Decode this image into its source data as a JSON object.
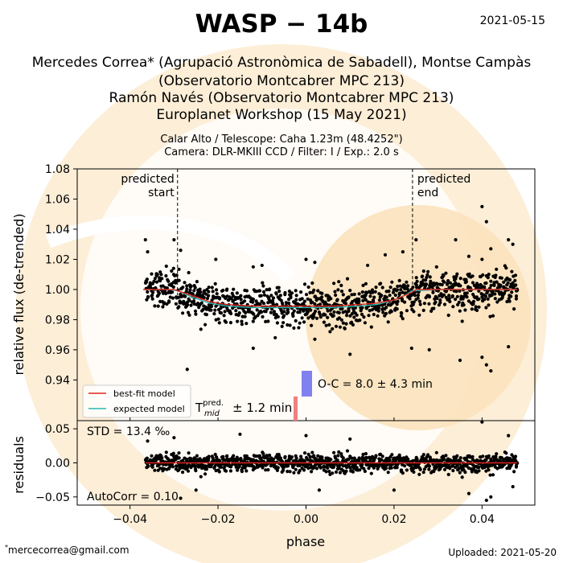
{
  "header": {
    "title": "WASP − 14b",
    "date": "2021-05-15",
    "authors_line1": "Mercedes Correa* (Agrupació Astronòmica de Sabadell), Montse Campàs",
    "authors_line2": "(Observatorio Montcabrer MPC 213)",
    "authors_line3": "Ramón Navés (Observatorio Montcabrer MPC 213)",
    "authors_line4": "Europlanet Workshop (15 May 2021)",
    "obs_line1": "Calar Alto / Telescope: Caha 1.23m (48.4252\")",
    "obs_line2": "Camera: DLR-MKIII CCD / Filter: I / Exp.: 2.0 s"
  },
  "footer": {
    "email": "mercecorrea@gmail.com",
    "email_mark": "*",
    "uploaded": "Uploaded: 2021-05-20"
  },
  "colors": {
    "data_points": "#000000",
    "best_fit": "#e0241b",
    "expected": "#2bb5b0",
    "oc_bar": "#8080f0",
    "tmid_bar": "#f08080",
    "watermark": "#fbe7c8"
  },
  "chart_data": [
    {
      "type": "scatter",
      "panel": "light curve",
      "xlabel": "",
      "ylabel": "relative flux (de-trended)",
      "xlim": [
        -0.052,
        0.052
      ],
      "ylim": [
        0.913,
        1.08
      ],
      "yticks": [
        "0.94",
        "0.96",
        "0.98",
        "1.00",
        "1.02",
        "1.04",
        "1.06",
        "1.08"
      ],
      "ytick_values": [
        0.94,
        0.96,
        0.98,
        1.0,
        1.02,
        1.04,
        1.06,
        1.08
      ],
      "grid": false,
      "legend_position": "bottom-left",
      "annotations": {
        "predicted_start": "predicted\nstart",
        "predicted_end": "predicted\nend",
        "predicted_start_x": -0.0292,
        "predicted_end_x": 0.0242,
        "oc_text": "O-C = 8.0 ± 4.3 min",
        "tmid_text": "± 1.2 min",
        "tmid_symbol": "T",
        "tmid_sup": "pred.",
        "tmid_sub": "mid"
      },
      "series": [
        {
          "name": "best-fit model",
          "x": [
            -0.037,
            -0.03,
            -0.029,
            -0.026,
            -0.022,
            -0.018,
            -0.012,
            -0.006,
            0.0,
            0.006,
            0.012,
            0.016,
            0.02,
            0.024,
            0.025,
            0.03,
            0.036,
            0.042,
            0.048
          ],
          "y": [
            1.0,
            1.0,
            0.999,
            0.996,
            0.992,
            0.99,
            0.989,
            0.989,
            0.989,
            0.989,
            0.99,
            0.991,
            0.993,
            0.998,
            1.0,
            1.0,
            1.0,
            1.0,
            1.0
          ]
        },
        {
          "name": "expected model",
          "x": [
            -0.037,
            -0.031,
            -0.029,
            -0.026,
            -0.022,
            -0.018,
            -0.012,
            -0.006,
            0.0,
            0.006,
            0.012,
            0.016,
            0.02,
            0.023,
            0.024,
            0.03,
            0.036,
            0.042,
            0.048
          ],
          "y": [
            1.0,
            1.0,
            0.999,
            0.995,
            0.991,
            0.989,
            0.988,
            0.988,
            0.988,
            0.988,
            0.989,
            0.99,
            0.993,
            0.997,
            0.999,
            1.0,
            1.0,
            1.0,
            1.0
          ]
        },
        {
          "name": "data",
          "x_range": [
            -0.0365,
            0.048
          ],
          "count": 1100,
          "scatter_sigma": 0.011,
          "outlier_points": [
            [
              -0.0365,
              1.033
            ],
            [
              -0.036,
              1.025
            ],
            [
              -0.03,
              1.033
            ],
            [
              -0.0285,
              1.026
            ],
            [
              -0.0265,
              0.983
            ],
            [
              -0.0205,
              1.02
            ],
            [
              -0.0185,
              0.995
            ],
            [
              -0.012,
              1.015
            ],
            [
              -0.01,
              1.016
            ],
            [
              0.0,
              1.02
            ],
            [
              0.002,
              1.018
            ],
            [
              0.014,
              1.016
            ],
            [
              0.018,
              1.023
            ],
            [
              0.022,
              1.025
            ],
            [
              0.025,
              1.033
            ],
            [
              0.034,
              1.033
            ],
            [
              0.037,
              1.022
            ],
            [
              0.04,
              1.02
            ],
            [
              0.04,
              1.055
            ],
            [
              0.041,
              1.045
            ],
            [
              0.042,
              1.027
            ],
            [
              0.046,
              1.033
            ],
            [
              0.047,
              1.03
            ],
            [
              -0.027,
              0.947
            ],
            [
              -0.012,
              0.961
            ],
            [
              -0.007,
              0.968
            ],
            [
              0.002,
              0.967
            ],
            [
              0.01,
              0.957
            ],
            [
              0.024,
              0.961
            ],
            [
              0.028,
              0.96
            ],
            [
              0.035,
              0.953
            ],
            [
              0.04,
              0.955
            ],
            [
              0.041,
              0.95
            ],
            [
              0.042,
              0.946
            ],
            [
              0.046,
              0.962
            ]
          ]
        }
      ],
      "oc": {
        "value_min": 8.0,
        "err_min": 4.3
      }
    },
    {
      "type": "scatter",
      "panel": "residuals",
      "xlabel": "phase",
      "ylabel": "residuals",
      "xlim": [
        -0.052,
        0.052
      ],
      "ylim": [
        -0.062,
        0.062
      ],
      "xticks": [
        "−0.04",
        "−0.02",
        "0.00",
        "0.02",
        "0.04"
      ],
      "xtick_values": [
        -0.04,
        -0.02,
        0.0,
        0.02,
        0.04
      ],
      "yticks": [
        "−0.05",
        "0.00",
        "0.05"
      ],
      "ytick_values": [
        -0.05,
        0.0,
        0.05
      ],
      "std_text": "STD = 13.4 ‰",
      "autocorr_text": "AutoCorr = 0.10",
      "residual_line": 0.0,
      "outlier_points": [
        [
          -0.036,
          0.032
        ],
        [
          -0.03,
          0.037
        ],
        [
          -0.025,
          -0.04
        ],
        [
          -0.015,
          0.042
        ],
        [
          0.0,
          0.04
        ],
        [
          0.003,
          -0.04
        ],
        [
          0.01,
          0.035
        ],
        [
          0.02,
          -0.04
        ],
        [
          0.037,
          -0.045
        ],
        [
          0.04,
          0.06
        ],
        [
          0.041,
          -0.055
        ],
        [
          0.042,
          -0.05
        ],
        [
          0.046,
          0.04
        ],
        [
          0.047,
          -0.035
        ],
        [
          -0.0285,
          -0.052
        ]
      ]
    }
  ]
}
